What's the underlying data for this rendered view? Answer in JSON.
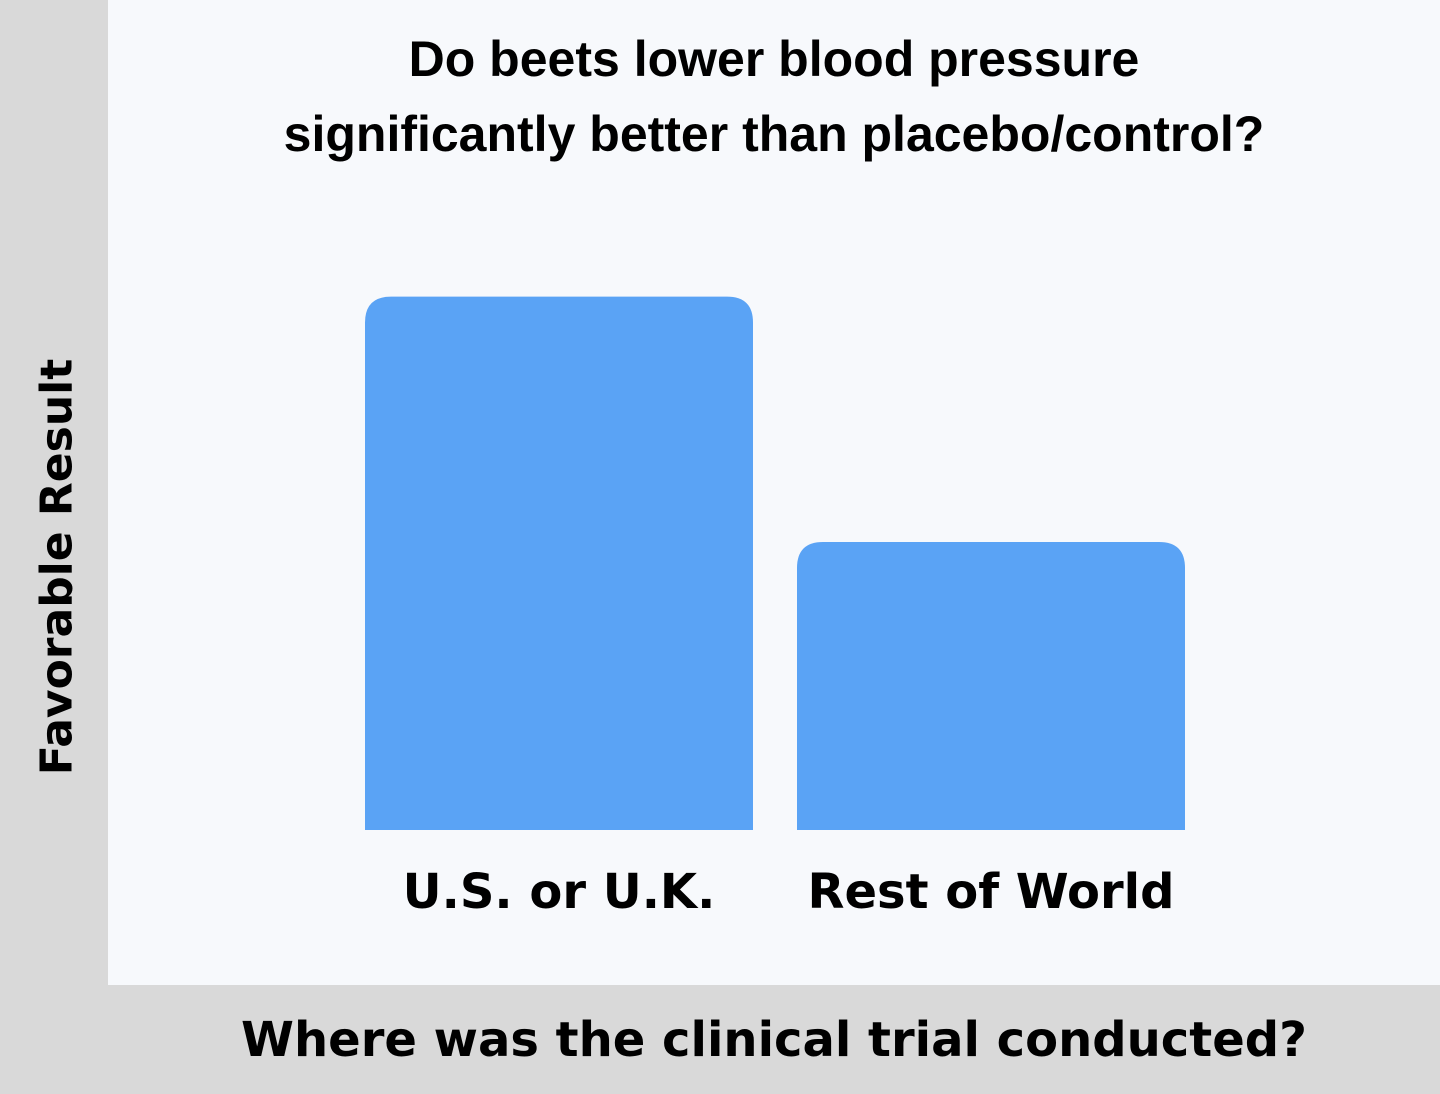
{
  "chart_data": {
    "type": "bar",
    "title": "Do beets lower blood pressure significantly better than placebo/control?",
    "title_lines": [
      "Do beets lower blood pressure",
      "significantly better than placebo/control?"
    ],
    "xlabel": "Where was the clinical trial conducted?",
    "ylabel": "Favorable Result",
    "categories": [
      "U.S. or U.K.",
      "Rest of World"
    ],
    "values": [
      1.0,
      0.54
    ],
    "ylim": [
      0,
      1.05
    ],
    "grid": false,
    "bar_color": "#5aa3f5"
  }
}
